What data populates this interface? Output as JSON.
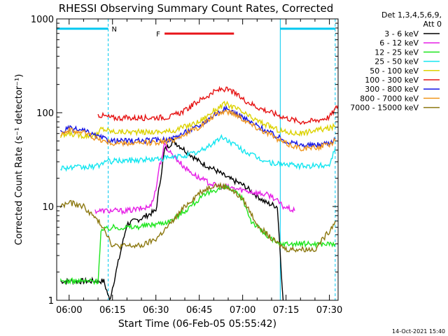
{
  "chart_data": {
    "type": "line",
    "title": "RHESSI Observing Summary Count Rates, Corrected",
    "ylabel": "Corrected Count Rate (s⁻¹ detector⁻¹)",
    "xlabel": "Start Time (06-Feb-05 05:55:42)",
    "y_scale": "log",
    "ylim": [
      1,
      1000
    ],
    "y_ticks": [
      1,
      10,
      100,
      1000
    ],
    "x_ticks": [
      "06:00",
      "06:15",
      "06:30",
      "06:45",
      "07:00",
      "07:15",
      "07:30"
    ],
    "xlim": [
      "05:55:42",
      "07:33:00"
    ],
    "detector_info": "Det 1,3,4,5,6,9,",
    "attenuator": "Att 0",
    "timestamp": "14-Oct-2021 15:40",
    "flags": [
      {
        "label": "N",
        "start": "05:55:42",
        "end": "06:13:30",
        "color": "#00c8f0"
      },
      {
        "label": "",
        "start": "07:13:00",
        "end": "07:32:00",
        "color": "#00c8f0"
      },
      {
        "label": "F",
        "start": "06:33:00",
        "end": "06:57:00",
        "color": "#e8141a"
      }
    ],
    "series": [
      {
        "name": "3 - 6 keV",
        "color": "#000000",
        "x": [
          "05:57",
          "06:04",
          "06:10",
          "06:12",
          "06:14",
          "06:20",
          "06:25",
          "06:30",
          "06:33",
          "06:36",
          "06:40",
          "06:45",
          "06:50",
          "06:55",
          "07:00",
          "07:05",
          "07:08",
          "07:12",
          "07:14"
        ],
        "y": [
          1.6,
          1.6,
          1.6,
          1.6,
          1.0,
          6.5,
          7.5,
          9.0,
          40,
          50,
          40,
          30,
          25,
          20,
          17,
          13,
          11,
          10,
          1.0
        ]
      },
      {
        "name": "6 - 12 keV",
        "color": "#e61ee6",
        "x": [
          "06:09",
          "06:15",
          "06:20",
          "06:25",
          "06:28",
          "06:30",
          "06:31",
          "06:33",
          "06:36",
          "06:40",
          "06:45",
          "06:50",
          "06:55",
          "07:00",
          "07:05",
          "07:10",
          "07:14",
          "07:18"
        ],
        "y": [
          9,
          9,
          9,
          9.5,
          10,
          15,
          25,
          45,
          35,
          26,
          20,
          17,
          16,
          15,
          14,
          13,
          10,
          9
        ]
      },
      {
        "name": "12 - 25 keV",
        "color": "#1ee61e",
        "x": [
          "05:57",
          "06:05",
          "06:10",
          "06:11",
          "06:15",
          "06:22",
          "06:30",
          "06:35",
          "06:40",
          "06:45",
          "06:50",
          "06:55",
          "07:00",
          "07:03",
          "07:08",
          "07:12",
          "07:15",
          "07:20",
          "07:25",
          "07:30",
          "07:32"
        ],
        "y": [
          1.6,
          1.6,
          1.6,
          5.5,
          6,
          6,
          6.5,
          7,
          9,
          12,
          15,
          16,
          12,
          7,
          5,
          4,
          4,
          4,
          4,
          4,
          4
        ]
      },
      {
        "name": "25 - 50 keV",
        "color": "#14e6f0",
        "x": [
          "05:57",
          "06:05",
          "06:10",
          "06:12",
          "06:20",
          "06:30",
          "06:35",
          "06:40",
          "06:45",
          "06:50",
          "06:53",
          "06:56",
          "07:00",
          "07:05",
          "07:10",
          "07:15",
          "07:20",
          "07:25",
          "07:30",
          "07:32"
        ],
        "y": [
          26,
          26,
          27,
          30,
          31,
          32,
          33,
          35,
          38,
          48,
          55,
          48,
          40,
          33,
          29,
          28,
          27,
          27,
          28,
          42
        ]
      },
      {
        "name": "50 - 100 keV",
        "color": "#dcd200",
        "x": [
          "05:57",
          "06:00",
          "06:05",
          "06:10",
          "06:11",
          "06:15",
          "06:25",
          "06:35",
          "06:45",
          "06:50",
          "06:54",
          "06:58",
          "07:03",
          "07:08",
          "07:12",
          "07:15",
          "07:20",
          "07:25",
          "07:30",
          "07:32"
        ],
        "y": [
          55,
          60,
          57,
          58,
          68,
          63,
          62,
          63,
          80,
          105,
          125,
          110,
          88,
          75,
          66,
          62,
          60,
          65,
          68,
          72
        ]
      },
      {
        "name": "100 - 300 keV",
        "color": "#e61414",
        "x": [
          "06:10",
          "06:15",
          "06:25",
          "06:35",
          "06:40",
          "06:45",
          "06:50",
          "06:53",
          "06:56",
          "07:00",
          "07:05",
          "07:10",
          "07:15",
          "07:20",
          "07:25",
          "07:30",
          "07:33"
        ],
        "y": [
          95,
          88,
          88,
          90,
          105,
          135,
          165,
          180,
          170,
          140,
          115,
          100,
          88,
          80,
          82,
          90,
          120
        ]
      },
      {
        "name": "300 - 800 keV",
        "color": "#1414e6",
        "x": [
          "05:57",
          "06:00",
          "06:05",
          "06:10",
          "06:15",
          "06:25",
          "06:35",
          "06:45",
          "06:50",
          "06:54",
          "06:58",
          "07:03",
          "07:08",
          "07:12",
          "07:15",
          "07:20",
          "07:25",
          "07:30",
          "07:32"
        ],
        "y": [
          62,
          68,
          64,
          55,
          50,
          50,
          52,
          72,
          95,
          110,
          98,
          78,
          65,
          55,
          50,
          45,
          45,
          48,
          52
        ]
      },
      {
        "name": "800 - 7000 keV",
        "color": "#f0961e",
        "x": [
          "05:57",
          "06:00",
          "06:05",
          "06:10",
          "06:15",
          "06:25",
          "06:35",
          "06:45",
          "06:50",
          "06:54",
          "06:58",
          "07:03",
          "07:08",
          "07:12",
          "07:15",
          "07:20",
          "07:25",
          "07:30",
          "07:32"
        ],
        "y": [
          60,
          65,
          62,
          52,
          47,
          47,
          50,
          70,
          92,
          105,
          95,
          75,
          62,
          52,
          47,
          42,
          42,
          46,
          50
        ]
      },
      {
        "name": "7000 - 15000 keV",
        "color": "#8c7810",
        "x": [
          "05:57",
          "06:00",
          "06:05",
          "06:10",
          "06:12",
          "06:15",
          "06:20",
          "06:25",
          "06:30",
          "06:35",
          "06:40",
          "06:45",
          "06:50",
          "06:55",
          "07:00",
          "07:05",
          "07:10",
          "07:15",
          "07:20",
          "07:25",
          "07:30",
          "07:32"
        ],
        "y": [
          10,
          11,
          10,
          7,
          6,
          3.8,
          3.8,
          3.8,
          4.5,
          6.5,
          10,
          14,
          17,
          16,
          12,
          6.5,
          4.5,
          3.5,
          3.5,
          3.5,
          5.5,
          7
        ]
      }
    ]
  }
}
